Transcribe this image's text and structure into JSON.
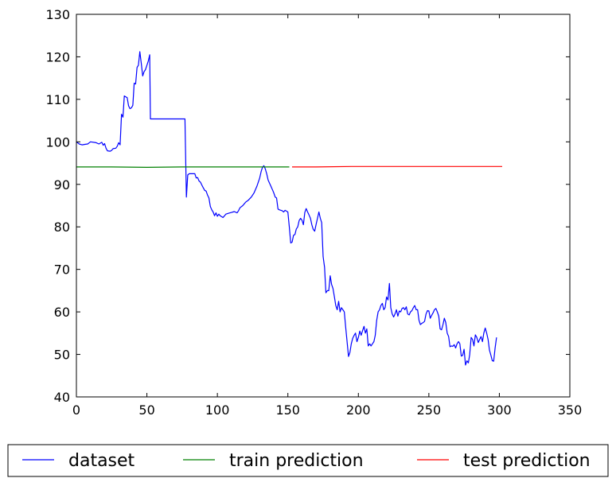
{
  "chart_data": {
    "type": "line",
    "title": "",
    "xlabel": "",
    "ylabel": "",
    "xlim": [
      0,
      350
    ],
    "ylim": [
      40,
      130
    ],
    "xticks": [
      0,
      50,
      100,
      150,
      200,
      250,
      300,
      350
    ],
    "yticks": [
      40,
      50,
      60,
      70,
      80,
      90,
      100,
      110,
      120,
      130
    ],
    "legend_position": "below plot, single row",
    "series": [
      {
        "name": "dataset",
        "color": "#0000ff",
        "points": [
          [
            0,
            100.0
          ],
          [
            2,
            99.5
          ],
          [
            4,
            99.3
          ],
          [
            6,
            99.4
          ],
          [
            8,
            99.5
          ],
          [
            10,
            100.0
          ],
          [
            14,
            99.8
          ],
          [
            16,
            99.5
          ],
          [
            18,
            99.9
          ],
          [
            19,
            99.2
          ],
          [
            20,
            99.6
          ],
          [
            21,
            98.5
          ],
          [
            22,
            97.9
          ],
          [
            24,
            97.8
          ],
          [
            25,
            98.0
          ],
          [
            26,
            98.4
          ],
          [
            28,
            98.5
          ],
          [
            29,
            99.0
          ],
          [
            30,
            99.8
          ],
          [
            31,
            99.3
          ],
          [
            32,
            106.5
          ],
          [
            33,
            105.8
          ],
          [
            34,
            110.8
          ],
          [
            35,
            110.6
          ],
          [
            36,
            110.4
          ],
          [
            37,
            108.5
          ],
          [
            38,
            107.8
          ],
          [
            39,
            108.0
          ],
          [
            40,
            108.6
          ],
          [
            41,
            113.8
          ],
          [
            42,
            113.6
          ],
          [
            43,
            117.5
          ],
          [
            44,
            118.0
          ],
          [
            45,
            121.2
          ],
          [
            46,
            118.5
          ],
          [
            47,
            115.5
          ],
          [
            48,
            116.5
          ],
          [
            49,
            117.0
          ],
          [
            50,
            118.0
          ],
          [
            51,
            119.0
          ],
          [
            52,
            120.5
          ],
          [
            52.5,
            105.4
          ],
          [
            77,
            105.4
          ],
          [
            78,
            87.0
          ],
          [
            79,
            92.2
          ],
          [
            80,
            92.5
          ],
          [
            82,
            92.5
          ],
          [
            84,
            92.5
          ],
          [
            85,
            91.5
          ],
          [
            86,
            91.6
          ],
          [
            87,
            90.8
          ],
          [
            88,
            90.5
          ],
          [
            89,
            89.8
          ],
          [
            90,
            89.2
          ],
          [
            91,
            88.6
          ],
          [
            92,
            88.4
          ],
          [
            93,
            87.5
          ],
          [
            94,
            86.8
          ],
          [
            95,
            84.8
          ],
          [
            96,
            84.0
          ],
          [
            97,
            83.5
          ],
          [
            98,
            82.6
          ],
          [
            99,
            83.3
          ],
          [
            100,
            82.5
          ],
          [
            101,
            83.0
          ],
          [
            102,
            82.6
          ],
          [
            104,
            82.2
          ],
          [
            106,
            83.0
          ],
          [
            108,
            83.2
          ],
          [
            110,
            83.4
          ],
          [
            112,
            83.6
          ],
          [
            114,
            83.3
          ],
          [
            115,
            83.8
          ],
          [
            116,
            84.5
          ],
          [
            118,
            85.0
          ],
          [
            120,
            85.8
          ],
          [
            122,
            86.3
          ],
          [
            124,
            87.0
          ],
          [
            126,
            88.0
          ],
          [
            128,
            89.5
          ],
          [
            130,
            91.5
          ],
          [
            131,
            93.0
          ],
          [
            132,
            94.0
          ],
          [
            133,
            94.4
          ],
          [
            134,
            93.6
          ],
          [
            135,
            92.5
          ],
          [
            136,
            91.0
          ],
          [
            138,
            89.5
          ],
          [
            139,
            88.8
          ],
          [
            140,
            88.0
          ],
          [
            141,
            87.0
          ],
          [
            142,
            86.8
          ],
          [
            143,
            84.2
          ],
          [
            144,
            84.0
          ],
          [
            146,
            83.8
          ],
          [
            147,
            83.5
          ],
          [
            148,
            83.9
          ],
          [
            150,
            83.5
          ],
          [
            151,
            80.0
          ],
          [
            152,
            76.2
          ],
          [
            153,
            76.4
          ],
          [
            154,
            78.0
          ],
          [
            155,
            78.2
          ],
          [
            156,
            79.5
          ],
          [
            157,
            80.0
          ],
          [
            158,
            81.5
          ],
          [
            159,
            82.0
          ],
          [
            160,
            81.6
          ],
          [
            161,
            80.5
          ],
          [
            162,
            83.4
          ],
          [
            163,
            84.3
          ],
          [
            164,
            83.5
          ],
          [
            165,
            82.8
          ],
          [
            166,
            82.0
          ],
          [
            167,
            80.5
          ],
          [
            168,
            79.4
          ],
          [
            169,
            79.0
          ],
          [
            170,
            80.5
          ],
          [
            171,
            82.0
          ],
          [
            172,
            83.5
          ],
          [
            173,
            82.0
          ],
          [
            174,
            81.0
          ],
          [
            175,
            73.0
          ],
          [
            176,
            70.5
          ],
          [
            177,
            64.5
          ],
          [
            178,
            65.0
          ],
          [
            179,
            65.0
          ],
          [
            180,
            68.5
          ],
          [
            181,
            66.5
          ],
          [
            182,
            65.5
          ],
          [
            183,
            63.5
          ],
          [
            184,
            61.5
          ],
          [
            185,
            60.5
          ],
          [
            186,
            62.5
          ],
          [
            187,
            60.0
          ],
          [
            188,
            61.0
          ],
          [
            189,
            60.5
          ],
          [
            190,
            60.0
          ],
          [
            191,
            56.5
          ],
          [
            192,
            53.0
          ],
          [
            193,
            49.5
          ],
          [
            194,
            50.5
          ],
          [
            195,
            52.5
          ],
          [
            196,
            53.8
          ],
          [
            197,
            54.5
          ],
          [
            198,
            55.0
          ],
          [
            199,
            53.0
          ],
          [
            200,
            54.0
          ],
          [
            201,
            55.5
          ],
          [
            202,
            54.5
          ],
          [
            203,
            55.6
          ],
          [
            204,
            56.6
          ],
          [
            205,
            55.0
          ],
          [
            206,
            56.0
          ],
          [
            207,
            52.0
          ],
          [
            208,
            52.5
          ],
          [
            209,
            52.0
          ],
          [
            210,
            52.5
          ],
          [
            211,
            53.0
          ],
          [
            212,
            54.5
          ],
          [
            213,
            58.0
          ],
          [
            214,
            60.0
          ],
          [
            215,
            60.5
          ],
          [
            216,
            61.5
          ],
          [
            217,
            62.0
          ],
          [
            218,
            60.5
          ],
          [
            219,
            61.0
          ],
          [
            220,
            63.5
          ],
          [
            221,
            62.8
          ],
          [
            222,
            66.7
          ],
          [
            223,
            61.0
          ],
          [
            224,
            59.5
          ],
          [
            225,
            58.8
          ],
          [
            226,
            59.5
          ],
          [
            227,
            60.5
          ],
          [
            228,
            59.0
          ],
          [
            229,
            60.2
          ],
          [
            230,
            60.0
          ],
          [
            231,
            60.8
          ],
          [
            232,
            61.0
          ],
          [
            233,
            60.5
          ],
          [
            234,
            61.2
          ],
          [
            235,
            59.5
          ],
          [
            236,
            59.3
          ],
          [
            237,
            60.0
          ],
          [
            238,
            60.3
          ],
          [
            239,
            61.0
          ],
          [
            240,
            61.5
          ],
          [
            241,
            60.5
          ],
          [
            242,
            60.5
          ],
          [
            243,
            58.0
          ],
          [
            244,
            57.0
          ],
          [
            245,
            57.3
          ],
          [
            246,
            57.5
          ],
          [
            247,
            57.8
          ],
          [
            248,
            59.5
          ],
          [
            249,
            60.3
          ],
          [
            250,
            60.2
          ],
          [
            251,
            58.5
          ],
          [
            252,
            59.2
          ],
          [
            253,
            59.8
          ],
          [
            254,
            60.5
          ],
          [
            255,
            60.8
          ],
          [
            256,
            60.0
          ],
          [
            257,
            59.0
          ],
          [
            258,
            56.0
          ],
          [
            259,
            55.8
          ],
          [
            260,
            57.0
          ],
          [
            261,
            58.5
          ],
          [
            262,
            57.5
          ],
          [
            263,
            55.0
          ],
          [
            264,
            54.2
          ],
          [
            265,
            51.8
          ],
          [
            266,
            52.0
          ],
          [
            267,
            51.9
          ],
          [
            268,
            52.3
          ],
          [
            269,
            51.5
          ],
          [
            270,
            52.5
          ],
          [
            271,
            53.0
          ],
          [
            272,
            52.5
          ],
          [
            273,
            49.6
          ],
          [
            274,
            49.8
          ],
          [
            275,
            51.2
          ],
          [
            276,
            47.5
          ],
          [
            277,
            48.5
          ],
          [
            278,
            48.0
          ],
          [
            279,
            50.0
          ],
          [
            280,
            54.0
          ],
          [
            281,
            53.5
          ],
          [
            282,
            52.0
          ],
          [
            283,
            54.6
          ],
          [
            284,
            54.0
          ],
          [
            285,
            52.8
          ],
          [
            286,
            53.5
          ],
          [
            287,
            54.2
          ],
          [
            288,
            53.0
          ],
          [
            289,
            55.0
          ],
          [
            290,
            56.2
          ],
          [
            291,
            55.0
          ],
          [
            292,
            53.5
          ],
          [
            293,
            51.0
          ],
          [
            294,
            49.8
          ],
          [
            295,
            48.5
          ],
          [
            296,
            48.4
          ],
          [
            297,
            51.5
          ],
          [
            298,
            54.0
          ]
        ]
      },
      {
        "name": "train prediction",
        "color": "#008000",
        "points": [
          [
            0,
            94.1
          ],
          [
            25,
            94.1
          ],
          [
            50,
            94.0
          ],
          [
            75,
            94.1
          ],
          [
            100,
            94.1
          ],
          [
            125,
            94.1
          ],
          [
            151,
            94.1
          ]
        ]
      },
      {
        "name": "test prediction",
        "color": "#ff0000",
        "points": [
          [
            153,
            94.1
          ],
          [
            170,
            94.1
          ],
          [
            195,
            94.2
          ],
          [
            220,
            94.2
          ],
          [
            250,
            94.2
          ],
          [
            275,
            94.2
          ],
          [
            302,
            94.2
          ]
        ]
      }
    ]
  }
}
